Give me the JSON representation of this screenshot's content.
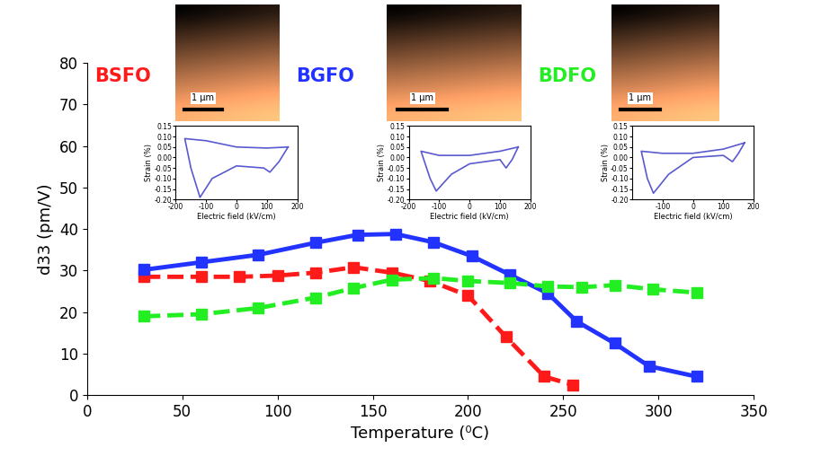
{
  "chart_data": [
    {
      "type": "line",
      "x_label": "Temperature (⁰C)",
      "y_label": "d33 (pm/V)",
      "xlim": [
        0,
        350
      ],
      "xticks": [
        0,
        50,
        100,
        150,
        200,
        250,
        300,
        350
      ],
      "ylim": [
        0,
        80
      ],
      "yticks": [
        0,
        10,
        20,
        30,
        40,
        50,
        60,
        70,
        80
      ],
      "grid": false,
      "series": [
        {
          "name": "BSFO",
          "color": "#ff1a1a",
          "marker": "square",
          "line_style": "dashed",
          "x": [
            30,
            60,
            80,
            100,
            120,
            140,
            160,
            180,
            200,
            220,
            240,
            255
          ],
          "values": [
            28.5,
            28.5,
            28.5,
            28.8,
            29.5,
            30.8,
            29.5,
            27.5,
            24,
            14,
            4.5,
            2.5
          ]
        },
        {
          "name": "BGFO",
          "color": "#2233ff",
          "marker": "square",
          "line_style": "solid",
          "x": [
            30,
            60,
            90,
            120,
            142,
            162,
            182,
            202,
            222,
            242,
            257,
            277,
            295,
            320
          ],
          "values": [
            30.2,
            32,
            33.8,
            36.7,
            38.6,
            38.8,
            36.8,
            33.5,
            29,
            24.5,
            17.8,
            12.5,
            7,
            4.5
          ]
        },
        {
          "name": "BDFO",
          "color": "#22ee22",
          "marker": "square",
          "line_style": "dashed",
          "x": [
            30,
            60,
            90,
            120,
            140,
            160,
            182,
            200,
            222,
            242,
            260,
            277,
            297,
            320
          ],
          "values": [
            19,
            19.5,
            21,
            23.5,
            25.8,
            27.8,
            28.2,
            27.5,
            27,
            26.2,
            26,
            26.5,
            25.5,
            24.7
          ]
        }
      ]
    },
    {
      "type": "line",
      "x_label": "Electric field (kV/cm)",
      "y_label": "Strain (%)",
      "annotations": [
        "1 μm"
      ],
      "xlim": [
        -200,
        200
      ],
      "xticks": [
        -200,
        -100,
        0,
        100,
        200
      ],
      "ylim": [
        -0.2,
        0.15
      ],
      "yticks": [
        {
          "value": 0.15,
          "label": "0.15"
        },
        {
          "value": 0.1,
          "label": "0.10"
        },
        {
          "value": 0.05,
          "label": "0.05"
        },
        {
          "value": 0,
          "label": "0.00"
        },
        {
          "value": -0.05,
          "label": "-0.05"
        },
        {
          "value": -0.1,
          "label": "-0.10"
        },
        {
          "value": -0.15,
          "label": "-0.15"
        },
        {
          "value": -0.2,
          "label": "-0.20"
        }
      ],
      "series": [
        {
          "color": "#5a5ad0",
          "line_style": "solid",
          "x": [
            170,
            100,
            0,
            -100,
            -170,
            -150,
            -120,
            -80,
            0,
            90,
            110,
            140,
            170
          ],
          "values": [
            0.05,
            0.045,
            0.05,
            0.08,
            0.09,
            -0.05,
            -0.19,
            -0.1,
            -0.04,
            -0.05,
            -0.07,
            -0.02,
            0.05
          ]
        }
      ]
    },
    {
      "type": "line",
      "x_label": "Electric field (kV/cm)",
      "y_label": "Strain (%)",
      "annotations": [
        "1 μm"
      ],
      "xlim": [
        -200,
        200
      ],
      "xticks": [
        -200,
        -100,
        0,
        100,
        200
      ],
      "ylim": [
        -0.2,
        0.15
      ],
      "yticks": [
        {
          "value": 0.15,
          "label": "0.15"
        },
        {
          "value": 0.1,
          "label": "0.10"
        },
        {
          "value": 0.05,
          "label": "0.05"
        },
        {
          "value": 0,
          "label": "0.00"
        },
        {
          "value": -0.05,
          "label": "-0.05"
        },
        {
          "value": -0.1,
          "label": "-0.10"
        },
        {
          "value": -0.15,
          "label": "-0.15"
        },
        {
          "value": -0.2,
          "label": "-0.20"
        }
      ],
      "series": [
        {
          "color": "#5a5ad0",
          "line_style": "solid",
          "x": [
            160,
            100,
            0,
            -100,
            -160,
            -130,
            -110,
            -60,
            0,
            100,
            120,
            140,
            160
          ],
          "values": [
            0.05,
            0.03,
            0.01,
            0.01,
            0.03,
            -0.1,
            -0.16,
            -0.08,
            -0.03,
            -0.01,
            -0.05,
            -0.01,
            0.05
          ]
        }
      ]
    },
    {
      "type": "line",
      "x_label": "Electric field (kV/cm)",
      "y_label": "Strain (%)",
      "annotations": [
        "1 μm"
      ],
      "xlim": [
        -200,
        200
      ],
      "xticks": [
        -100,
        0,
        100,
        200
      ],
      "ylim": [
        -0.2,
        0.15
      ],
      "yticks": [
        {
          "value": 0.15,
          "label": "0.15"
        },
        {
          "value": 0.1,
          "label": "0.10"
        },
        {
          "value": 0.05,
          "label": "0.05"
        },
        {
          "value": 0,
          "label": "0.00"
        },
        {
          "value": -0.05,
          "label": "-0.05"
        },
        {
          "value": -0.1,
          "label": "-0.10"
        },
        {
          "value": -0.15,
          "label": "-0.15"
        },
        {
          "value": -0.2,
          "label": "-0.20"
        }
      ],
      "series": [
        {
          "color": "#5a5ad0",
          "line_style": "solid",
          "x": [
            170,
            100,
            0,
            -100,
            -170,
            -150,
            -130,
            -80,
            0,
            100,
            130,
            150,
            170
          ],
          "values": [
            0.07,
            0.04,
            0.02,
            0.02,
            0.03,
            -0.1,
            -0.17,
            -0.08,
            0.0,
            0.01,
            -0.02,
            0.02,
            0.07
          ]
        }
      ]
    }
  ]
}
